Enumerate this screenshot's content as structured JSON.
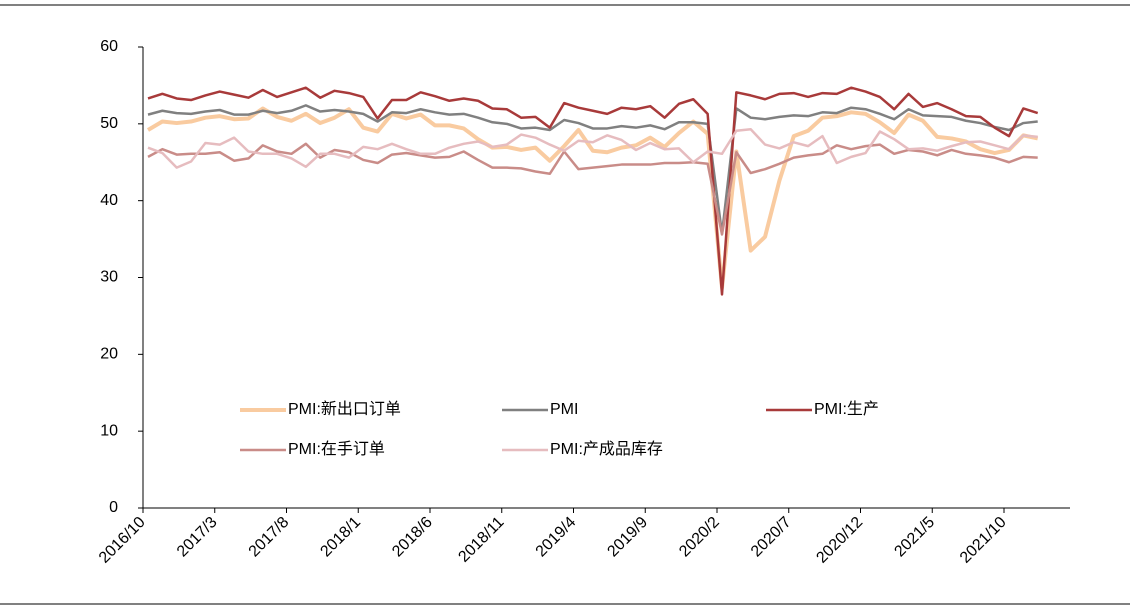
{
  "chart_data": {
    "type": "line",
    "categories": [
      "2016/10",
      null,
      null,
      null,
      null,
      "2017/3",
      null,
      null,
      null,
      null,
      "2017/8",
      null,
      null,
      null,
      null,
      "2018/1",
      null,
      null,
      null,
      null,
      "2018/6",
      null,
      null,
      null,
      null,
      "2018/11",
      null,
      null,
      null,
      null,
      "2019/4",
      null,
      null,
      null,
      null,
      "2019/9",
      null,
      null,
      null,
      null,
      "2020/2",
      null,
      null,
      null,
      null,
      "2020/7",
      null,
      null,
      null,
      null,
      "2020/12",
      null,
      null,
      null,
      null,
      "2021/5",
      null,
      null,
      null,
      null,
      "2021/10",
      null,
      null
    ],
    "ylim": [
      0,
      60
    ],
    "yticks": [
      0,
      10,
      20,
      30,
      40,
      50,
      60
    ],
    "series": [
      {
        "name": "PMI:新出口订单",
        "color": "#f9cba0",
        "values": [
          49.2,
          50.3,
          50.1,
          50.3,
          50.8,
          51.0,
          50.6,
          50.7,
          52.0,
          50.9,
          50.4,
          51.3,
          50.1,
          50.8,
          51.9,
          49.5,
          49.0,
          51.3,
          50.7,
          51.2,
          49.8,
          49.8,
          49.4,
          48.0,
          46.9,
          47.0,
          46.6,
          46.9,
          45.2,
          47.1,
          49.2,
          46.5,
          46.3,
          46.9,
          47.2,
          48.2,
          47.0,
          48.8,
          50.3,
          48.7,
          28.7,
          46.4,
          33.5,
          35.3,
          42.6,
          48.4,
          49.1,
          50.8,
          51.0,
          51.5,
          51.3,
          50.2,
          48.8,
          51.2,
          50.4,
          48.3,
          48.1,
          47.7,
          46.7,
          46.2,
          46.6,
          48.5,
          48.1
        ]
      },
      {
        "name": "PMI",
        "color": "#808080",
        "values": [
          51.2,
          51.7,
          51.4,
          51.3,
          51.6,
          51.8,
          51.2,
          51.2,
          51.7,
          51.4,
          51.7,
          52.4,
          51.6,
          51.8,
          51.6,
          51.3,
          50.3,
          51.5,
          51.4,
          51.9,
          51.5,
          51.2,
          51.3,
          50.8,
          50.2,
          50.0,
          49.4,
          49.5,
          49.2,
          50.5,
          50.1,
          49.4,
          49.4,
          49.7,
          49.5,
          49.8,
          49.3,
          50.2,
          50.2,
          50.0,
          35.7,
          52.0,
          50.8,
          50.6,
          50.9,
          51.1,
          51.0,
          51.5,
          51.4,
          52.1,
          51.9,
          51.3,
          50.6,
          51.9,
          51.1,
          51.0,
          50.9,
          50.4,
          50.1,
          49.6,
          49.2,
          50.1,
          50.3
        ]
      },
      {
        "name": "PMI:生产",
        "color": "#a83a3a",
        "values": [
          53.3,
          53.9,
          53.3,
          53.1,
          53.7,
          54.2,
          53.8,
          53.4,
          54.4,
          53.5,
          54.1,
          54.7,
          53.4,
          54.3,
          54.0,
          53.5,
          50.7,
          53.1,
          53.1,
          54.1,
          53.6,
          53.0,
          53.3,
          53.0,
          52.0,
          51.9,
          50.8,
          50.9,
          49.5,
          52.7,
          52.1,
          51.7,
          51.3,
          52.1,
          51.9,
          52.3,
          50.8,
          52.6,
          53.2,
          51.3,
          27.8,
          54.1,
          53.7,
          53.2,
          53.9,
          54.0,
          53.5,
          54.0,
          53.9,
          54.7,
          54.2,
          53.5,
          51.9,
          53.9,
          52.2,
          52.7,
          51.9,
          51.0,
          50.9,
          49.5,
          48.4,
          52.0,
          51.4
        ]
      },
      {
        "name": "PMI:在手订单",
        "color": "#c98c88",
        "values": [
          45.7,
          46.7,
          46.0,
          46.1,
          46.1,
          46.3,
          45.2,
          45.5,
          47.2,
          46.4,
          46.1,
          47.4,
          45.6,
          46.6,
          46.3,
          45.3,
          44.9,
          46.0,
          46.2,
          45.9,
          45.6,
          45.7,
          46.4,
          45.3,
          44.3,
          44.3,
          44.2,
          43.8,
          43.5,
          46.4,
          44.1,
          44.3,
          44.5,
          44.7,
          44.7,
          44.7,
          44.9,
          44.9,
          45.0,
          44.8,
          35.6,
          46.3,
          43.6,
          44.1,
          44.8,
          45.6,
          45.9,
          46.1,
          47.2,
          46.7,
          47.1,
          47.3,
          46.1,
          46.6,
          46.4,
          45.9,
          46.6,
          46.1,
          45.9,
          45.6,
          45.0,
          45.7,
          45.6
        ]
      },
      {
        "name": "PMI:产成品库存",
        "color": "#e6bcbf",
        "values": [
          46.9,
          46.2,
          44.3,
          45.1,
          47.5,
          47.3,
          48.2,
          46.4,
          46.1,
          46.1,
          45.5,
          44.4,
          46.1,
          46.1,
          45.6,
          47.0,
          46.7,
          47.4,
          46.7,
          46.1,
          46.1,
          46.9,
          47.4,
          47.7,
          47.0,
          47.3,
          48.6,
          48.2,
          47.3,
          46.5,
          47.8,
          47.6,
          48.5,
          47.9,
          46.6,
          47.5,
          46.7,
          46.8,
          45.0,
          46.4,
          46.1,
          49.1,
          49.3,
          47.3,
          46.8,
          47.6,
          47.1,
          48.4,
          44.9,
          45.7,
          46.2,
          49.0,
          48.0,
          46.7,
          46.8,
          46.5,
          47.1,
          47.6,
          47.7,
          47.2,
          46.7,
          48.5,
          48.3
        ]
      }
    ]
  }
}
